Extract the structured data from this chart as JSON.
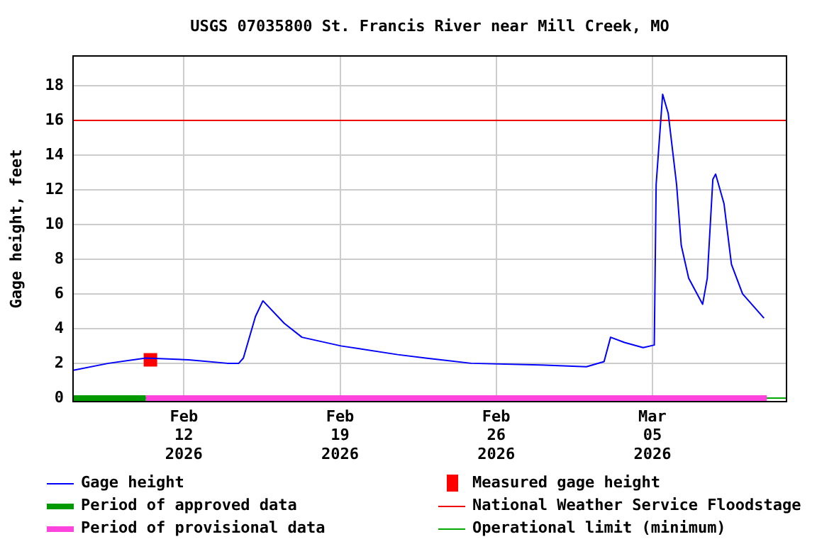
{
  "chart_data": {
    "type": "line",
    "title": "USGS 07035800 St. Francis River near Mill Creek, MO",
    "ylabel": "Gage height, feet",
    "xlim": [
      "2026-02-07T00:00",
      "2026-03-11T01:00"
    ],
    "xticks": [
      {
        "value": "2026-02-12",
        "label": "Feb\n12\n2026"
      },
      {
        "value": "2026-02-19",
        "label": "Feb\n19\n2026"
      },
      {
        "value": "2026-02-26",
        "label": "Feb\n26\n2026"
      },
      {
        "value": "2026-03-05",
        "label": "Mar\n05\n2026"
      }
    ],
    "ylim": [
      -0.25,
      19.75
    ],
    "yticks": [
      0,
      2,
      4,
      6,
      8,
      10,
      12,
      14,
      16,
      18
    ],
    "grid": true,
    "legend": "bottom",
    "series": [
      {
        "name": "Gage height",
        "color": "#0000ff",
        "x": [
          "2026-02-07T01:00",
          "2026-02-08T15:00",
          "2026-02-10T07:00",
          "2026-02-12T05:00",
          "2026-02-13T23:00",
          "2026-02-14T11:00",
          "2026-02-14T16:00",
          "2026-02-15T05:00",
          "2026-02-15T13:00",
          "2026-02-16T12:00",
          "2026-02-17T07:00",
          "2026-02-19T01:00",
          "2026-02-21T14:00",
          "2026-02-22T20:00",
          "2026-02-24T21:00",
          "2026-02-27T23:00",
          "2026-03-02T01:00",
          "2026-03-02T20:00",
          "2026-03-03T03:00",
          "2026-03-03T18:00",
          "2026-03-04T14:00",
          "2026-03-05T02:00",
          "2026-03-05T04:00",
          "2026-03-05T11:00",
          "2026-03-05T17:00",
          "2026-03-06T02:00",
          "2026-03-06T07:00",
          "2026-03-06T15:00",
          "2026-03-07T06:00",
          "2026-03-07T11:00",
          "2026-03-07T17:00",
          "2026-03-07T20:00",
          "2026-03-08T05:00",
          "2026-03-08T13:00",
          "2026-03-09T01:00",
          "2026-03-10T00:00"
        ],
        "values": [
          1.6,
          2.0,
          2.3,
          2.2,
          2.0,
          2.0,
          2.3,
          4.7,
          5.6,
          4.3,
          3.5,
          3.0,
          2.5,
          2.3,
          2.0,
          1.9,
          1.8,
          2.1,
          3.5,
          3.2,
          2.9,
          3.05,
          12.3,
          17.5,
          16.4,
          12.3,
          8.8,
          6.9,
          5.4,
          6.9,
          12.6,
          12.9,
          11.2,
          7.7,
          6.0,
          4.6
        ]
      },
      {
        "name": "Measured gage height",
        "type": "scatter",
        "marker": "square",
        "color": "#ff0000",
        "x": [
          "2026-02-10T12:00"
        ],
        "values": [
          2.2
        ]
      },
      {
        "name": "Period of approved data",
        "type": "line",
        "color": "#009900",
        "x": [
          "2026-02-07T00:00",
          "2026-02-10T07:00"
        ],
        "values": [
          0,
          0
        ]
      },
      {
        "name": "Period of provisional data",
        "type": "line",
        "color": "#ff44dd",
        "x": [
          "2026-02-10T07:00",
          "2026-03-10T03:00"
        ],
        "values": [
          0,
          0
        ]
      }
    ],
    "ref_lines": [
      {
        "axis": "y",
        "value": 16,
        "label": "National Weather Service Floodstage",
        "color": "#ee0000"
      },
      {
        "axis": "y",
        "value": 0,
        "label": "Operational limit (minimum)",
        "color": "#00aa00"
      }
    ]
  }
}
